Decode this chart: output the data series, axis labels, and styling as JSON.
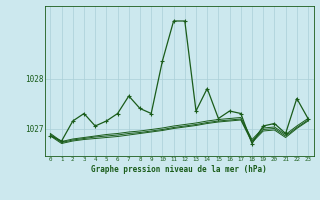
{
  "xlabel": "Graphe pression niveau de la mer (hPa)",
  "x_ticks": [
    0,
    1,
    2,
    3,
    4,
    5,
    6,
    7,
    8,
    9,
    10,
    11,
    12,
    13,
    14,
    15,
    16,
    17,
    18,
    19,
    20,
    21,
    22,
    23
  ],
  "ylim": [
    1026.45,
    1029.45
  ],
  "yticks": [
    1027,
    1028
  ],
  "background_color": "#cce8ee",
  "grid_color": "#aacfd8",
  "line_color": "#1a5c1a",
  "series1": [
    1026.85,
    1026.75,
    1027.15,
    1027.3,
    1027.05,
    1027.15,
    1027.3,
    1027.65,
    1027.4,
    1027.3,
    1028.35,
    1029.15,
    1029.15,
    1027.35,
    1027.8,
    1027.2,
    1027.35,
    1027.3,
    1026.7,
    1027.05,
    1027.1,
    1026.9,
    1027.6,
    1027.2
  ],
  "series2": [
    1026.85,
    1026.7,
    1026.75,
    1026.78,
    1026.8,
    1026.82,
    1026.84,
    1026.87,
    1026.9,
    1026.93,
    1026.96,
    1027.0,
    1027.03,
    1027.06,
    1027.1,
    1027.13,
    1027.15,
    1027.17,
    1026.72,
    1026.95,
    1026.97,
    1026.82,
    1027.0,
    1027.15
  ],
  "series3": [
    1026.88,
    1026.72,
    1026.77,
    1026.8,
    1026.83,
    1026.85,
    1026.87,
    1026.9,
    1026.92,
    1026.95,
    1026.98,
    1027.02,
    1027.05,
    1027.08,
    1027.12,
    1027.15,
    1027.17,
    1027.19,
    1026.75,
    1026.98,
    1027.0,
    1026.85,
    1027.02,
    1027.17
  ],
  "series4": [
    1026.9,
    1026.74,
    1026.79,
    1026.82,
    1026.85,
    1026.88,
    1026.9,
    1026.93,
    1026.95,
    1026.98,
    1027.01,
    1027.05,
    1027.08,
    1027.11,
    1027.15,
    1027.18,
    1027.2,
    1027.22,
    1026.78,
    1027.01,
    1027.03,
    1026.88,
    1027.05,
    1027.2
  ]
}
